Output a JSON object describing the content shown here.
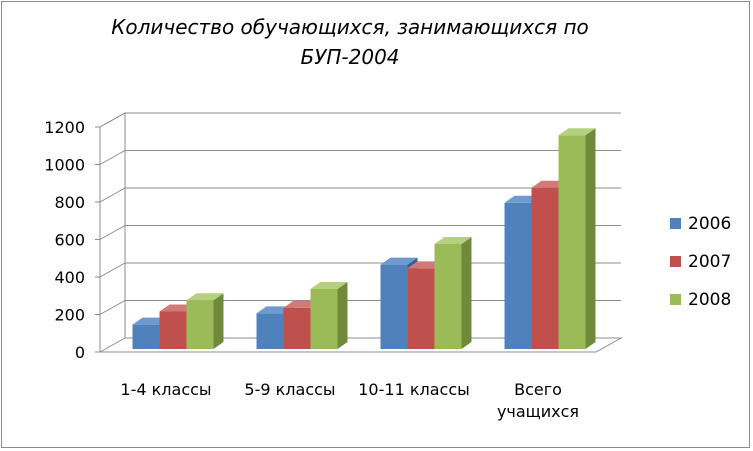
{
  "chart_data": {
    "type": "bar",
    "title_lines": [
      "Количество обучающихся, занимающихся по",
      "БУП-2004"
    ],
    "categories": [
      [
        "1-4 классы"
      ],
      [
        "5-9 классы"
      ],
      [
        "10-11 классы"
      ],
      [
        "Всего",
        "учащихся"
      ]
    ],
    "series": [
      {
        "name": "2006",
        "values": [
          130,
          190,
          450,
          780
        ],
        "color": "#4f81bd",
        "side": "#3a6193",
        "top": "#6f9ad0"
      },
      {
        "name": "2007",
        "values": [
          200,
          220,
          430,
          860
        ],
        "color": "#c0504d",
        "side": "#933c3a",
        "top": "#d27a77"
      },
      {
        "name": "2008",
        "values": [
          260,
          320,
          560,
          1140
        ],
        "color": "#9bbb59",
        "side": "#6f8a3a",
        "top": "#b5d07f"
      }
    ],
    "ylim": [
      0,
      1200
    ],
    "yticks": [
      "0",
      "200",
      "400",
      "600",
      "800",
      "1000",
      "1200"
    ],
    "grid": true,
    "legend_position": "right"
  }
}
